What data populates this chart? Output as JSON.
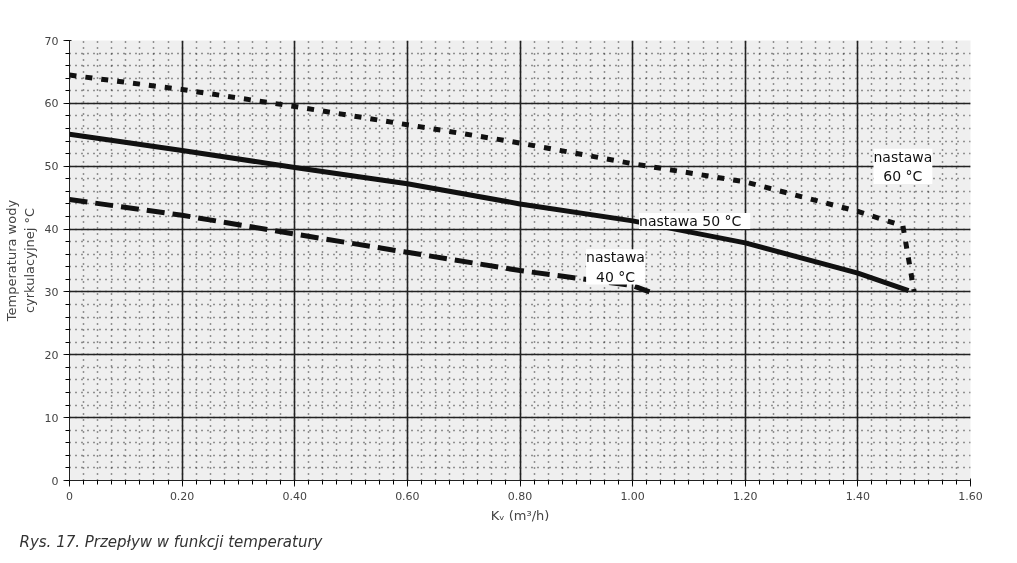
{
  "chart_data": {
    "type": "line",
    "xlabel": "Kᵥ (m³/h)",
    "ylabel": "Temperatura wody\ncyrkulacyjnej °C",
    "xlim": [
      0,
      1.6
    ],
    "ylim": [
      0,
      70
    ],
    "xticks": [
      0,
      {
        "value": 0.2,
        "label": "0.20"
      },
      {
        "value": 0.4,
        "label": "0.40"
      },
      {
        "value": 0.6,
        "label": "0.60"
      },
      {
        "value": 0.8,
        "label": "0.80"
      },
      {
        "value": 1.0,
        "label": "1.00"
      },
      {
        "value": 1.2,
        "label": "1.20"
      },
      {
        "value": 1.4,
        "label": "1.40"
      },
      {
        "value": 1.6,
        "label": "1.60"
      }
    ],
    "yticks": [
      0,
      10,
      20,
      30,
      40,
      50,
      60,
      70
    ],
    "grid": true,
    "series": [
      {
        "name": "nastawa\n60 °C",
        "color": "#111111",
        "line_style": "dotted",
        "x": [
          0,
          0.2,
          0.4,
          0.6,
          0.78,
          1.0,
          1.2,
          1.4,
          1.48,
          1.5
        ],
        "values": [
          64.5,
          62.2,
          59.5,
          56.6,
          54,
          50.4,
          47.5,
          42.8,
          40.5,
          30
        ]
      },
      {
        "name": "nastawa 50   °C",
        "color": "#111111",
        "line_style": "solid",
        "x": [
          0,
          0.2,
          0.4,
          0.6,
          0.8,
          1.0,
          1.2,
          1.4,
          1.49
        ],
        "values": [
          55.1,
          52.5,
          49.8,
          47.2,
          44,
          41.3,
          37.8,
          33,
          30.2
        ]
      },
      {
        "name": "nastawa\n40 °C",
        "color": "#111111",
        "line_style": "dashed",
        "x": [
          0,
          0.2,
          0.4,
          0.6,
          0.8,
          1.0,
          1.03
        ],
        "values": [
          44.7,
          42.2,
          39.2,
          36.3,
          33.4,
          31,
          30
        ]
      }
    ],
    "annotations": [
      "Rys. 17. Przepływ w funkcji temperatury"
    ]
  }
}
